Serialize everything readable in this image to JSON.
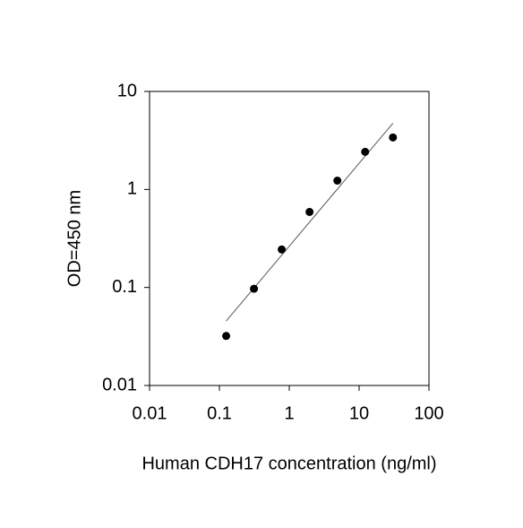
{
  "chart_data": {
    "type": "scatter",
    "x_label": "Human CDH17 concentration (ng/ml)",
    "y_label": "OD=450 nm",
    "x": [
      0.125,
      0.3125,
      0.78,
      1.95,
      4.88,
      12.2,
      30.5
    ],
    "values": [
      0.032,
      0.097,
      0.244,
      0.59,
      1.23,
      2.42,
      3.39
    ],
    "color": "#000000",
    "fit_line": {
      "x": [
        0.125,
        30.5
      ],
      "values": [
        0.0455,
        4.74
      ],
      "color": "#555555"
    },
    "xlim": [
      0.01,
      100
    ],
    "ylim": [
      0.01,
      10
    ],
    "xticks": [
      0.01,
      0.1,
      1,
      10,
      100
    ],
    "yticks": [
      0.01,
      0.1,
      1,
      10
    ],
    "x_log": true,
    "y_log": true,
    "grid": false
  }
}
